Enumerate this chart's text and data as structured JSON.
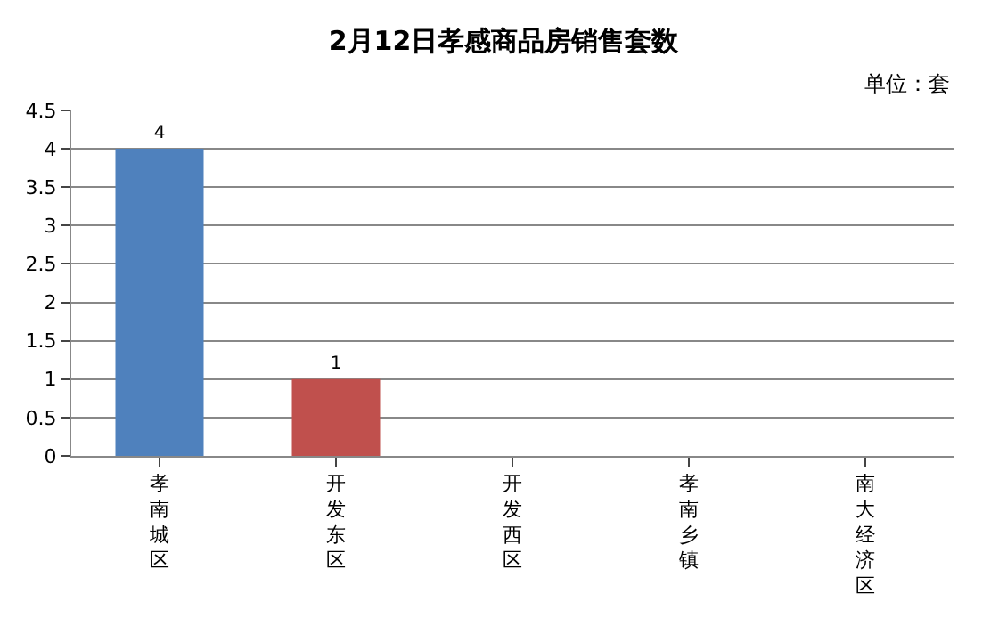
{
  "chart_data": {
    "type": "bar",
    "title": "2月12日孝感商品房销售套数",
    "subtitle": "单位：套",
    "categories": [
      "孝南城区",
      "开发东区",
      "开发西区",
      "孝南乡镇",
      "南大经济区"
    ],
    "values": [
      4,
      1,
      0,
      0,
      0
    ],
    "colors": [
      "#4f81bd",
      "#c0504d",
      "#9bbb59",
      "#8064a2",
      "#4bacc6"
    ],
    "value_labels": [
      "4",
      "1",
      null,
      null,
      null
    ],
    "ylim": [
      0,
      4.5
    ],
    "yticks": [
      0,
      0.5,
      1,
      1.5,
      2,
      2.5,
      3,
      3.5,
      4,
      4.5
    ],
    "grid": "y"
  }
}
